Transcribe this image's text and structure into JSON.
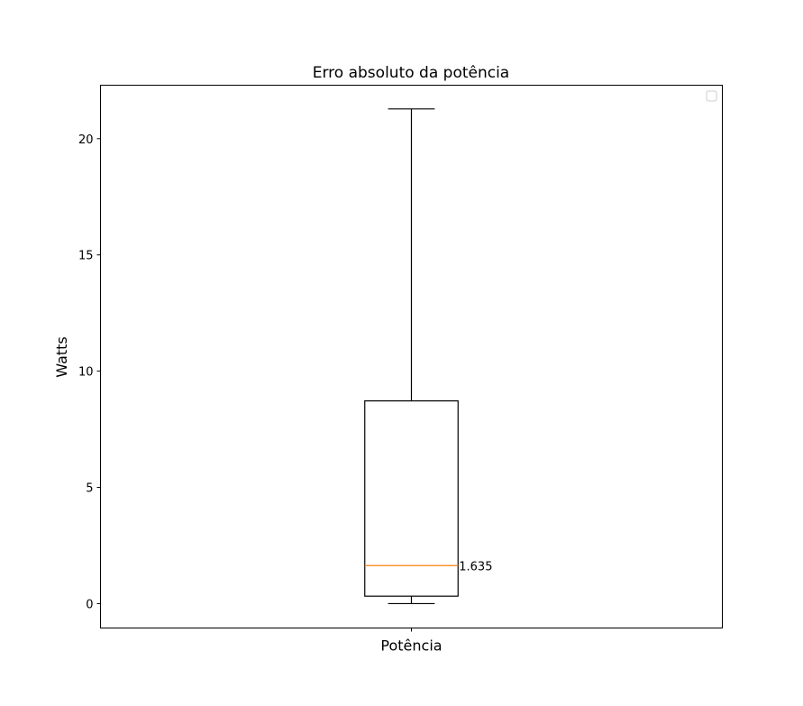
{
  "chart_data": {
    "type": "box",
    "title": "Erro absoluto da potência",
    "xlabel": "",
    "ylabel": "Watts",
    "categories": [
      "Potência"
    ],
    "ylim": [
      -1.05,
      22.3
    ],
    "yticks": [
      0,
      5,
      10,
      15,
      20
    ],
    "grid": false,
    "legend": {
      "placement": "top-right",
      "entries": []
    },
    "boxes": [
      {
        "category": "Potência",
        "whisker_low": 0.0,
        "q1": 0.32,
        "median": 1.635,
        "q3": 8.72,
        "whisker_high": 21.28,
        "median_label": "1.635"
      }
    ],
    "colors": {
      "median": "#ff7f0e",
      "box": "#000000"
    }
  }
}
